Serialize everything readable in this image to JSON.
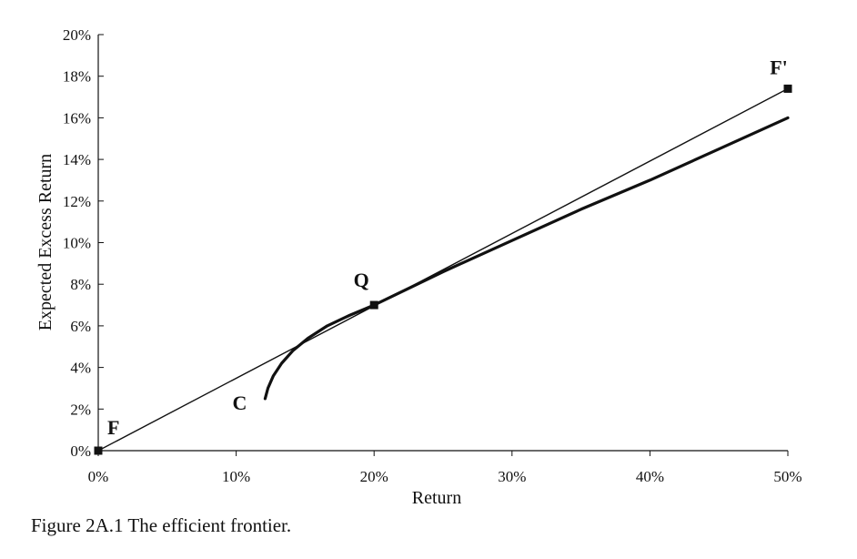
{
  "caption": "Figure 2A.1  The efficient frontier.",
  "chart_data": {
    "type": "line",
    "title": "",
    "xlabel": "Return",
    "ylabel": "Expected Excess Return",
    "xlim": [
      0,
      50
    ],
    "ylim": [
      0,
      20
    ],
    "x_ticks": [
      0,
      10,
      20,
      30,
      40,
      50
    ],
    "x_tick_labels": [
      "0%",
      "10%",
      "20%",
      "30%",
      "40%",
      "50%"
    ],
    "y_ticks": [
      0,
      2,
      4,
      6,
      8,
      10,
      12,
      14,
      16,
      18,
      20
    ],
    "y_tick_labels": [
      "0%",
      "2%",
      "4%",
      "6%",
      "8%",
      "10%",
      "12%",
      "14%",
      "16%",
      "18%",
      "20%"
    ],
    "grid": false,
    "legend": "none",
    "series": [
      {
        "style": "thin",
        "color": "#111111",
        "x": [
          0,
          50
        ],
        "y": [
          0,
          17.4
        ]
      },
      {
        "style": "thick",
        "color": "#111111",
        "x": [
          12.1,
          12.3,
          12.7,
          13.3,
          14.1,
          15.2,
          16.6,
          18.2,
          20,
          25,
          30,
          35,
          40,
          45,
          50
        ],
        "y": [
          2.5,
          3.0,
          3.6,
          4.2,
          4.8,
          5.4,
          6.0,
          6.5,
          7.0,
          8.6,
          10.1,
          11.6,
          13.0,
          14.5,
          16.0
        ]
      }
    ],
    "points": [
      {
        "label": "F",
        "x": 0,
        "y": 0
      },
      {
        "label": "Q",
        "x": 20,
        "y": 7.0
      },
      {
        "label": "F'",
        "x": 50,
        "y": 17.4
      }
    ],
    "annotations": [
      {
        "label": "C",
        "x": 12.1,
        "y": 2.5
      }
    ]
  }
}
